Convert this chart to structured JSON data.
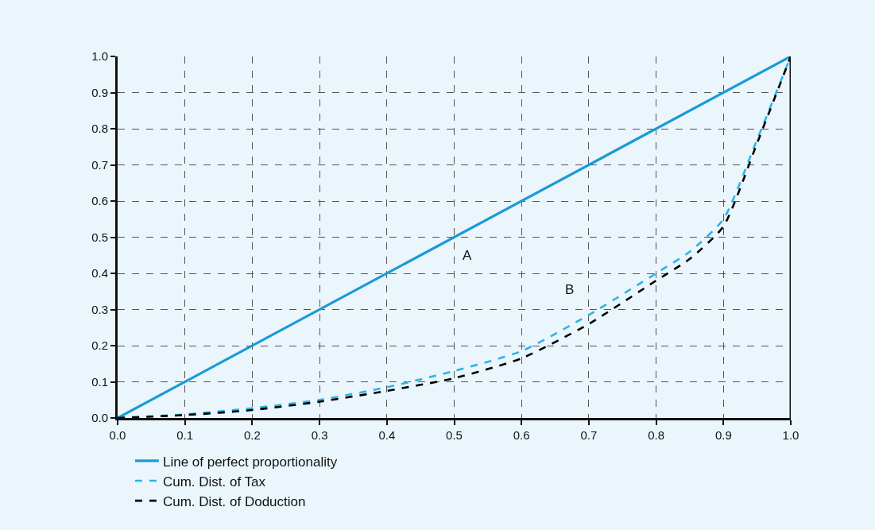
{
  "chart_data": {
    "type": "line",
    "x": [
      0,
      0.1,
      0.2,
      0.3,
      0.4,
      0.5,
      0.6,
      0.7,
      0.8,
      0.85,
      0.9,
      0.95,
      1.0
    ],
    "series": [
      {
        "name": "Line of perfect proportionality",
        "color": "#1a9ad6",
        "line_style": "solid",
        "x": [
          0,
          1.0
        ],
        "values": [
          0,
          1.0
        ]
      },
      {
        "name": "Cum. Dist. of Tax",
        "color": "#29b6e6",
        "line_style": "dashed",
        "values": [
          0,
          0.01,
          0.027,
          0.05,
          0.085,
          0.13,
          0.185,
          0.285,
          0.4,
          0.46,
          0.55,
          0.77,
          1.0
        ]
      },
      {
        "name": "Cum. Dist. of Doduction",
        "color": "#000000",
        "line_style": "dashed",
        "values": [
          0,
          0.008,
          0.022,
          0.045,
          0.075,
          0.11,
          0.165,
          0.26,
          0.38,
          0.44,
          0.53,
          0.76,
          1.0
        ]
      }
    ],
    "annotations": [
      "A",
      "B"
    ],
    "xlim": [
      0,
      1.0
    ],
    "ylim": [
      0,
      1.0
    ],
    "xticks": [
      {
        "value": 0,
        "label": "0.0"
      },
      0.1,
      0.2,
      0.3,
      0.4,
      0.5,
      0.6,
      0.7,
      0.8,
      0.9,
      {
        "value": 1,
        "label": "1.0"
      }
    ],
    "yticks": [
      {
        "value": 0,
        "label": "0.0"
      },
      0.1,
      0.2,
      0.3,
      0.4,
      0.5,
      0.6,
      0.7,
      0.8,
      0.9,
      {
        "value": 1,
        "label": "1.0"
      }
    ],
    "grid": true,
    "legend": "bottom",
    "marker": "none"
  }
}
